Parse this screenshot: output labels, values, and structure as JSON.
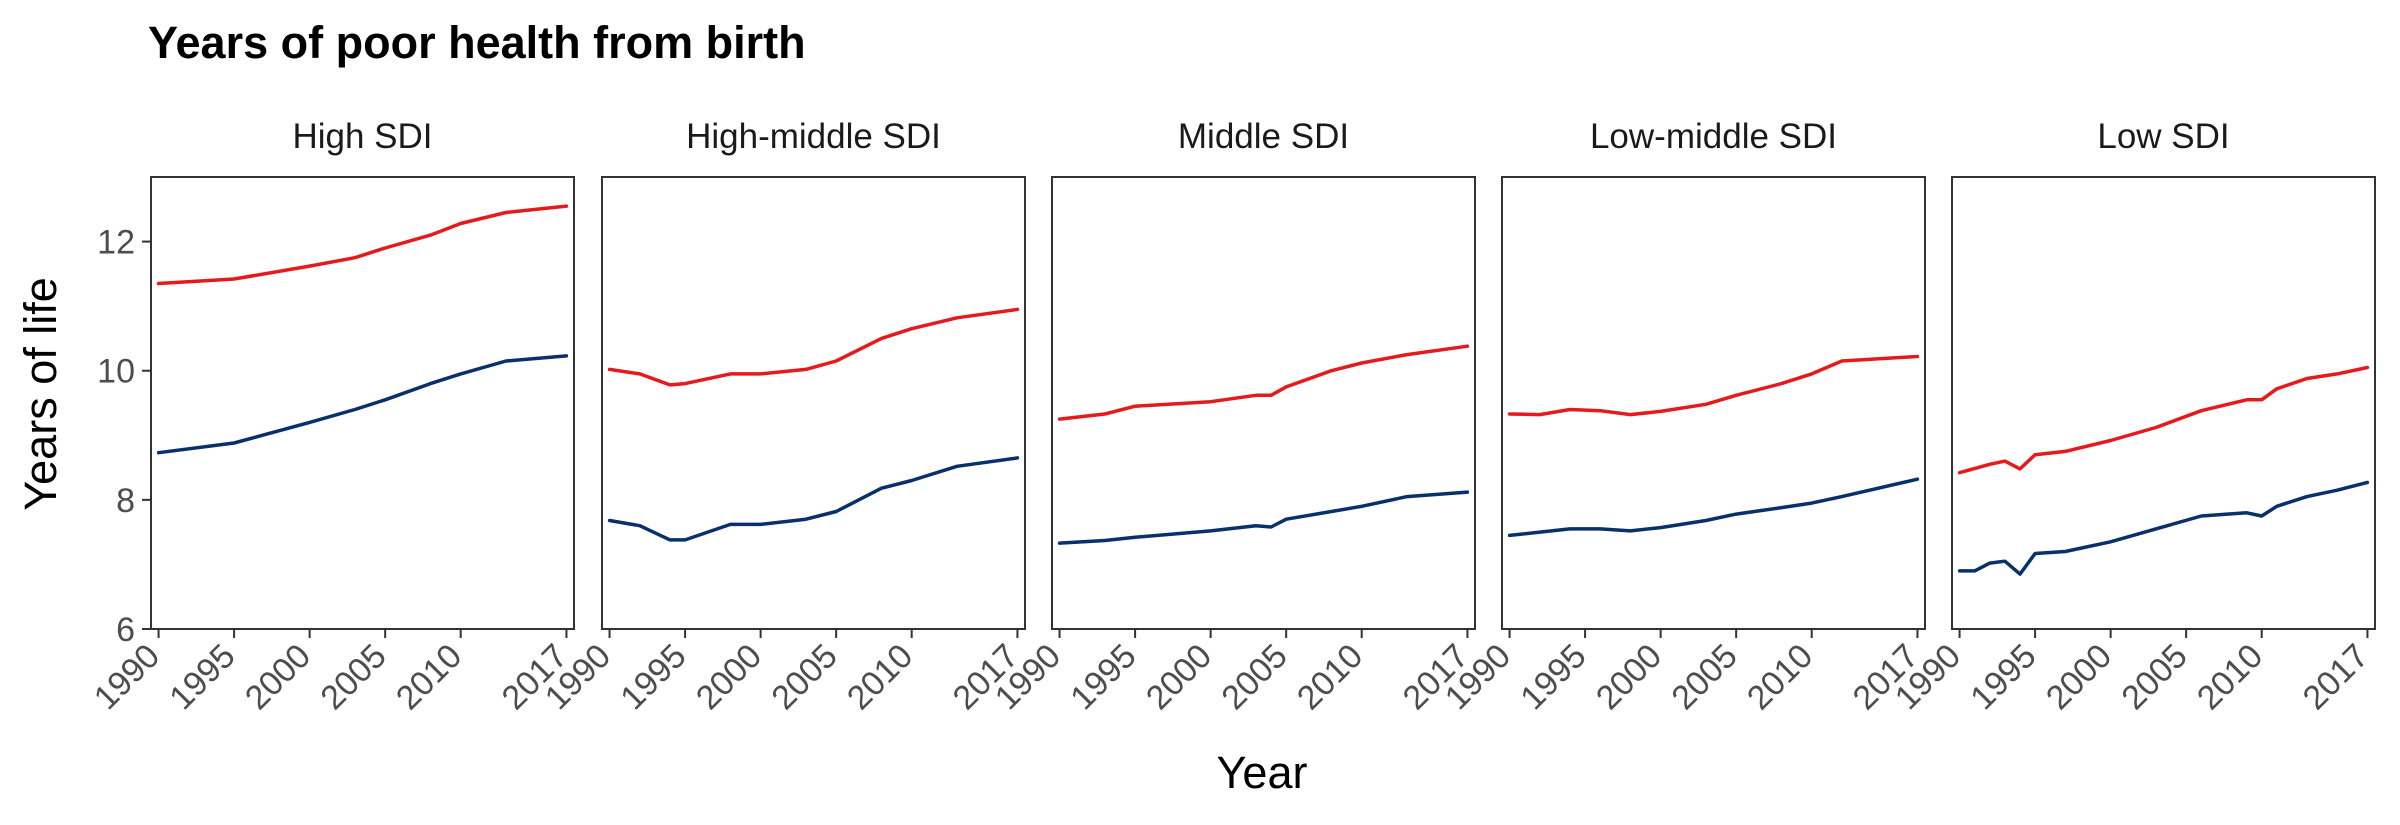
{
  "chart_data": {
    "type": "line",
    "title": "Years of poor health from birth",
    "xlabel": "Year",
    "ylabel": "Years of life",
    "ylim": [
      6,
      13
    ],
    "xlim": [
      1989.5,
      2017.5
    ],
    "x_ticks": [
      1990,
      1995,
      2000,
      2005,
      2010,
      2017
    ],
    "y_ticks": [
      6,
      8,
      10,
      12
    ],
    "grid": false,
    "legend": "none",
    "colors": {
      "upper": "#E41A1C",
      "lower": "#08306B"
    },
    "panels": [
      {
        "label": "High SDI",
        "series": [
          {
            "color": "#E41A1C",
            "x": [
              1990,
              1995,
              2000,
              2003,
              2005,
              2008,
              2010,
              2013,
              2017
            ],
            "y": [
              11.35,
              11.42,
              11.62,
              11.75,
              11.9,
              12.1,
              12.28,
              12.45,
              12.55
            ]
          },
          {
            "color": "#08306B",
            "x": [
              1990,
              1995,
              2000,
              2003,
              2005,
              2008,
              2010,
              2013,
              2017
            ],
            "y": [
              8.73,
              8.88,
              9.2,
              9.4,
              9.55,
              9.8,
              9.95,
              10.15,
              10.23
            ]
          }
        ]
      },
      {
        "label": "High-middle SDI",
        "series": [
          {
            "color": "#E41A1C",
            "x": [
              1990,
              1992,
              1994,
              1995,
              1998,
              2000,
              2003,
              2005,
              2008,
              2010,
              2013,
              2017
            ],
            "y": [
              10.02,
              9.95,
              9.78,
              9.8,
              9.95,
              9.95,
              10.02,
              10.15,
              10.5,
              10.65,
              10.82,
              10.95
            ]
          },
          {
            "color": "#08306B",
            "x": [
              1990,
              1992,
              1994,
              1995,
              1998,
              2000,
              2003,
              2005,
              2008,
              2010,
              2013,
              2017
            ],
            "y": [
              7.68,
              7.6,
              7.38,
              7.38,
              7.62,
              7.62,
              7.7,
              7.82,
              8.18,
              8.3,
              8.52,
              8.65
            ]
          }
        ]
      },
      {
        "label": "Middle SDI",
        "series": [
          {
            "color": "#E41A1C",
            "x": [
              1990,
              1993,
              1995,
              2000,
              2003,
              2004,
              2005,
              2008,
              2010,
              2013,
              2017
            ],
            "y": [
              9.25,
              9.33,
              9.45,
              9.52,
              9.62,
              9.62,
              9.75,
              10.0,
              10.12,
              10.25,
              10.38
            ]
          },
          {
            "color": "#08306B",
            "x": [
              1990,
              1993,
              1995,
              2000,
              2003,
              2004,
              2005,
              2008,
              2010,
              2013,
              2017
            ],
            "y": [
              7.33,
              7.37,
              7.42,
              7.52,
              7.6,
              7.58,
              7.7,
              7.82,
              7.9,
              8.05,
              8.12
            ]
          }
        ]
      },
      {
        "label": "Low-middle SDI",
        "series": [
          {
            "color": "#E41A1C",
            "x": [
              1990,
              1992,
              1994,
              1996,
              1998,
              2000,
              2003,
              2005,
              2008,
              2010,
              2012,
              2017
            ],
            "y": [
              9.33,
              9.32,
              9.4,
              9.38,
              9.32,
              9.37,
              9.48,
              9.62,
              9.8,
              9.95,
              10.15,
              10.22
            ]
          },
          {
            "color": "#08306B",
            "x": [
              1990,
              1992,
              1994,
              1996,
              1998,
              2000,
              2003,
              2005,
              2008,
              2010,
              2012,
              2017
            ],
            "y": [
              7.45,
              7.5,
              7.55,
              7.55,
              7.52,
              7.57,
              7.68,
              7.78,
              7.88,
              7.95,
              8.05,
              8.32
            ]
          }
        ]
      },
      {
        "label": "Low SDI",
        "series": [
          {
            "color": "#E41A1C",
            "x": [
              1990,
              1992,
              1993,
              1994,
              1995,
              1997,
              2000,
              2003,
              2006,
              2009,
              2010,
              2011,
              2013,
              2015,
              2017
            ],
            "y": [
              8.42,
              8.55,
              8.6,
              8.48,
              8.7,
              8.75,
              8.92,
              9.12,
              9.38,
              9.55,
              9.55,
              9.72,
              9.88,
              9.95,
              10.05
            ]
          },
          {
            "color": "#08306B",
            "x": [
              1990,
              1991,
              1992,
              1993,
              1994,
              1995,
              1997,
              2000,
              2003,
              2006,
              2009,
              2010,
              2011,
              2013,
              2015,
              2017
            ],
            "y": [
              6.9,
              6.9,
              7.02,
              7.05,
              6.85,
              7.17,
              7.2,
              7.35,
              7.55,
              7.75,
              7.8,
              7.75,
              7.9,
              8.05,
              8.15,
              8.27
            ]
          }
        ]
      }
    ]
  }
}
